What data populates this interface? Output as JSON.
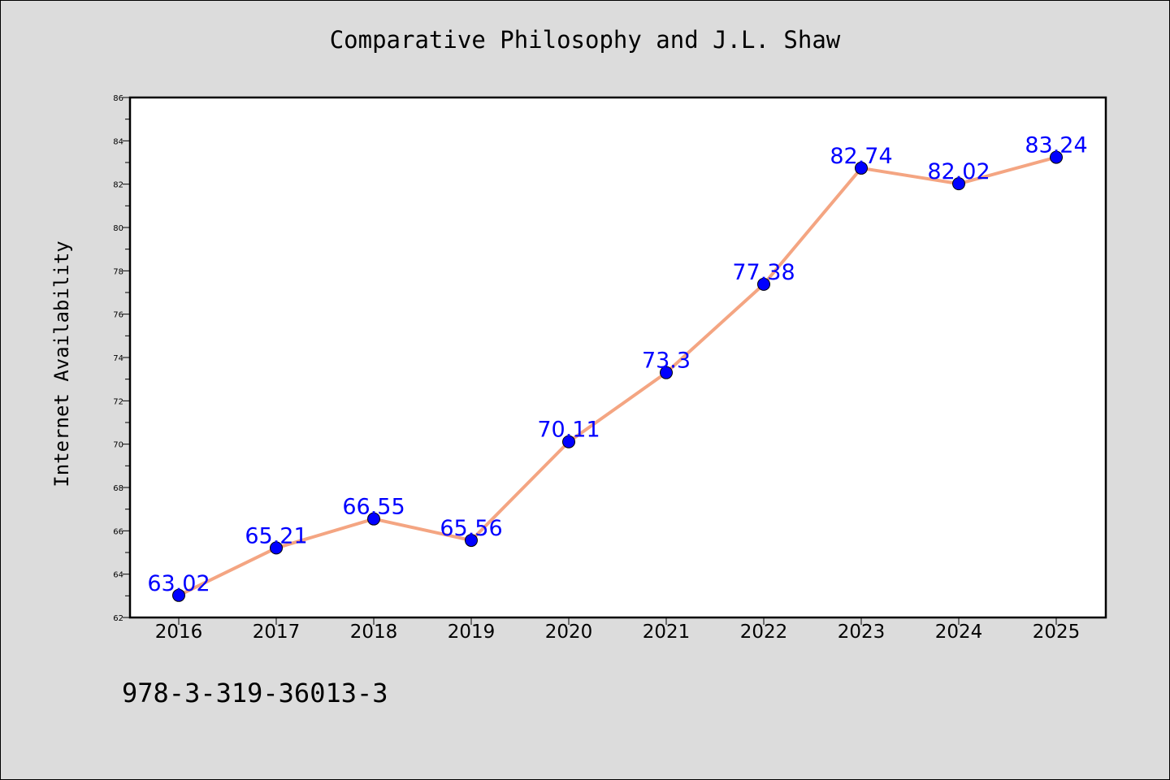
{
  "chart_data": {
    "type": "line",
    "title": "Comparative Philosophy and J.L. Shaw",
    "xlabel": "",
    "ylabel": "Internet Availability",
    "categories": [
      "2016",
      "2017",
      "2018",
      "2019",
      "2020",
      "2021",
      "2022",
      "2023",
      "2024",
      "2025"
    ],
    "series": [
      {
        "values": [
          63.02,
          65.21,
          66.55,
          65.56,
          70.11,
          73.3,
          77.38,
          82.74,
          82.02,
          83.24
        ],
        "data_labels": [
          "63.02",
          "65.21",
          "66.55",
          "65.56",
          "70.11",
          "73.3",
          "77.38",
          "82.74",
          "82.02",
          "83.24"
        ],
        "line_color": "#f4a582",
        "marker_color": "#0000ff",
        "label_color": "#0000ff"
      }
    ],
    "ylim": [
      62,
      86
    ],
    "yticks": [
      "62",
      "64",
      "66",
      "68",
      "70",
      "72",
      "74",
      "76",
      "78",
      "80",
      "82",
      "84",
      "86"
    ],
    "grid": false,
    "legend": "none"
  },
  "footer_text": "978-3-319-36013-3",
  "colors": {
    "background": "#dcdcdc",
    "plot_area": "#ffffff"
  }
}
